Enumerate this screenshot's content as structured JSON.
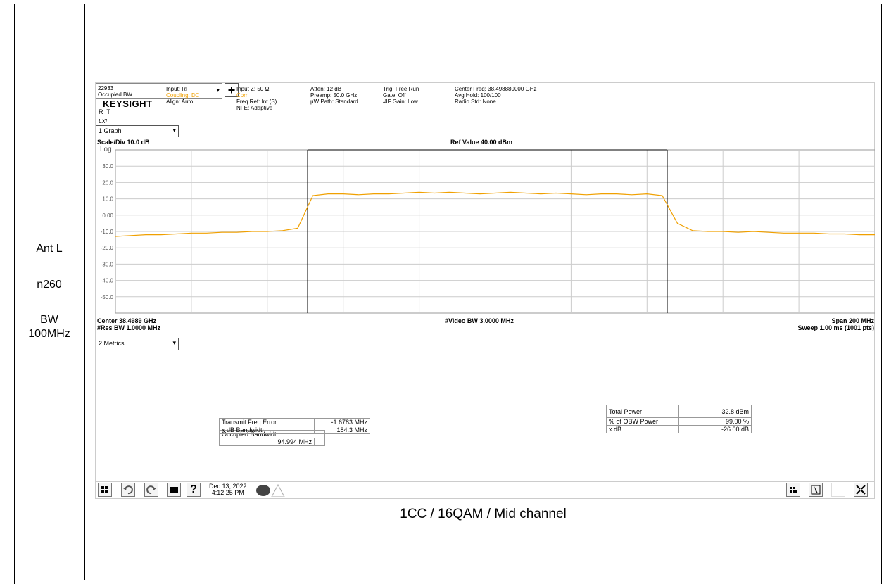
{
  "left_column": {
    "lines": [
      "Ant L",
      "n260",
      "BW",
      "100MHz"
    ]
  },
  "caption": "1CC / 16QAM / Mid channel",
  "analyzer": {
    "header": {
      "measurement_number": "22933",
      "measurement": "Occupied BW",
      "add_button": "+",
      "logo": "KEYSIGHT",
      "status": "R  T",
      "lxi": "LXI",
      "columns": [
        [
          "Input: RF",
          "Coupling: DC",
          "Align: Auto"
        ],
        [
          "Input Z: 50 Ω",
          "Corr",
          "Freq Ref: Int (S)",
          "NFE: Adaptive"
        ],
        [
          "Atten: 12 dB",
          "Preamp: 50.0 GHz",
          "µW Path: Standard"
        ],
        [
          "Trig: Free Run",
          "Gate: Off",
          "#IF Gain: Low"
        ],
        [
          "Center Freq: 38.498880000 GHz",
          "Avg|Hold: 100/100",
          "Radio Std: None"
        ]
      ]
    },
    "graph": {
      "type": "line",
      "selector": "1 Graph",
      "scale": "Scale/Div 10.0 dB",
      "scale_type": "Log",
      "ref_value": "Ref Value 40.00 dBm",
      "ylim": [
        -60,
        40
      ],
      "yticks": [
        {
          "value": 30,
          "label": "30.0"
        },
        {
          "value": 20,
          "label": "20.0"
        },
        {
          "value": 10,
          "label": "10.0"
        },
        {
          "value": 0,
          "label": "0.00"
        },
        {
          "value": -10,
          "label": "-10.0"
        },
        {
          "value": -20,
          "label": "-20.0"
        },
        {
          "value": -30,
          "label": "-30.0"
        },
        {
          "value": -40,
          "label": "-40.0"
        },
        {
          "value": -50,
          "label": "-50.0"
        }
      ],
      "grid": true,
      "color": "#f0a000",
      "values": [
        -13,
        -12.5,
        -12,
        -12,
        -11.5,
        -11,
        -11,
        -10.5,
        -10.5,
        -10,
        -10,
        -9.5,
        -8,
        12,
        13,
        13,
        12.5,
        13,
        13,
        13.5,
        14,
        13.5,
        14,
        13.5,
        13,
        13.5,
        14,
        13.5,
        13,
        13.5,
        13,
        12.5,
        13,
        13,
        12.5,
        13,
        12,
        -5,
        -9.5,
        -10,
        -10,
        -10.5,
        -10,
        -10.5,
        -11,
        -11,
        -11,
        -11.5,
        -11.5,
        -12,
        -12
      ],
      "center": "Center 38.4989 GHz",
      "res_bw": "#Res BW 1.0000 MHz",
      "video_bw": "#Video BW 3.0000 MHz",
      "span": "Span 200 MHz",
      "sweep": "Sweep 1.00 ms (1001 pts)"
    },
    "metrics": {
      "selector": "2 Metrics",
      "occupied_bandwidth": {
        "label": "Occupied Bandwidth",
        "value": "94.994 MHz"
      },
      "left_rows": [
        [
          "Transmit Freq Error",
          "-1.6783 MHz"
        ],
        [
          "x dB Bandwidth",
          "184.3 MHz"
        ]
      ],
      "right_rows": [
        [
          "Total Power",
          "32.8 dBm"
        ],
        [
          "% of OBW Power",
          "99.00 %"
        ],
        [
          "x dB",
          "-26.00 dB"
        ]
      ]
    },
    "taskbar": {
      "date": "Dec 13, 2022",
      "time": "4:12:25 PM",
      "help": "?"
    }
  }
}
